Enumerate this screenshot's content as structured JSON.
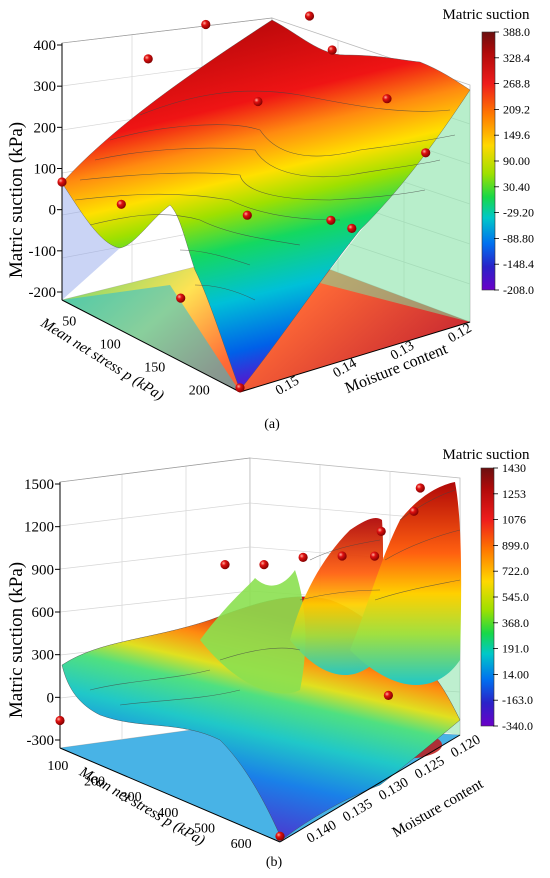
{
  "chart_data": [
    {
      "type": "surface3d",
      "panel_label": "(a)",
      "zlabel": "Matric suction (kPa)",
      "xlabel": "Mean net stress p (kPa)",
      "ylabel": "Moisture content",
      "x_ticks": [
        "50",
        "100",
        "150",
        "200"
      ],
      "y_ticks": [
        "0.12",
        "0.13",
        "0.14",
        "0.15"
      ],
      "z_ticks": [
        "400",
        "300",
        "200",
        "100",
        "0",
        "-100",
        "-200"
      ],
      "xlim": [
        50,
        200
      ],
      "ylim": [
        0.115,
        0.155
      ],
      "zlim": [
        -210,
        400
      ],
      "colorbar": {
        "title": "Matric suction",
        "ticks": [
          "388.0",
          "328.4",
          "268.8",
          "209.2",
          "149.6",
          "90.00",
          "30.40",
          "-29.20",
          "-88.80",
          "-148.4",
          "-208.0"
        ],
        "range": [
          -208.0,
          388.0
        ]
      },
      "points": [
        {
          "x": 50,
          "y": 0.117,
          "z": 390
        },
        {
          "x": 50,
          "y": 0.13,
          "z": 340
        },
        {
          "x": 50,
          "y": 0.14,
          "z": 300
        },
        {
          "x": 50,
          "y": 0.155,
          "z": 70
        },
        {
          "x": 80,
          "y": 0.117,
          "z": 350
        },
        {
          "x": 100,
          "y": 0.13,
          "z": 230
        },
        {
          "x": 100,
          "y": 0.155,
          "z": 90
        },
        {
          "x": 120,
          "y": 0.12,
          "z": 340
        },
        {
          "x": 140,
          "y": 0.14,
          "z": 60
        },
        {
          "x": 150,
          "y": 0.155,
          "z": -60
        },
        {
          "x": 160,
          "y": 0.117,
          "z": 270
        },
        {
          "x": 170,
          "y": 0.13,
          "z": 50
        },
        {
          "x": 190,
          "y": 0.13,
          "z": 60
        },
        {
          "x": 200,
          "y": 0.117,
          "z": 200
        },
        {
          "x": 200,
          "y": 0.155,
          "z": -200
        }
      ]
    },
    {
      "type": "surface3d",
      "panel_label": "(b)",
      "zlabel": "Matric suction (kPa)",
      "xlabel": "Mean net stress p (kPa)",
      "ylabel": "Moisture content",
      "x_ticks": [
        "100",
        "200",
        "300",
        "400",
        "500",
        "600"
      ],
      "y_ticks": [
        "0.120",
        "0.125",
        "0.130",
        "0.135",
        "0.140"
      ],
      "z_ticks": [
        "1500",
        "1200",
        "900",
        "600",
        "300",
        "0",
        "-300"
      ],
      "xlim": [
        100,
        600
      ],
      "ylim": [
        0.118,
        0.142
      ],
      "zlim": [
        -340,
        1500
      ],
      "colorbar": {
        "title": "Matric suction",
        "ticks": [
          "1430",
          "1253",
          "1076",
          "899.0",
          "722.0",
          "545.0",
          "368.0",
          "191.0",
          "14.00",
          "-163.0",
          "-340.0"
        ],
        "range": [
          -340.0,
          1430.0
        ]
      },
      "points": [
        {
          "x": 600,
          "y": 0.12,
          "z": 1430
        },
        {
          "x": 600,
          "y": 0.121,
          "z": 1300
        },
        {
          "x": 500,
          "y": 0.12,
          "z": 1000
        },
        {
          "x": 500,
          "y": 0.121,
          "z": 860
        },
        {
          "x": 400,
          "y": 0.12,
          "z": 700
        },
        {
          "x": 300,
          "y": 0.12,
          "z": 560
        },
        {
          "x": 200,
          "y": 0.12,
          "z": 380
        },
        {
          "x": 100,
          "y": 0.12,
          "z": 250
        },
        {
          "x": 100,
          "y": 0.142,
          "z": -150
        },
        {
          "x": 600,
          "y": 0.142,
          "z": -300
        },
        {
          "x": 600,
          "y": 0.125,
          "z": 150
        }
      ]
    }
  ]
}
